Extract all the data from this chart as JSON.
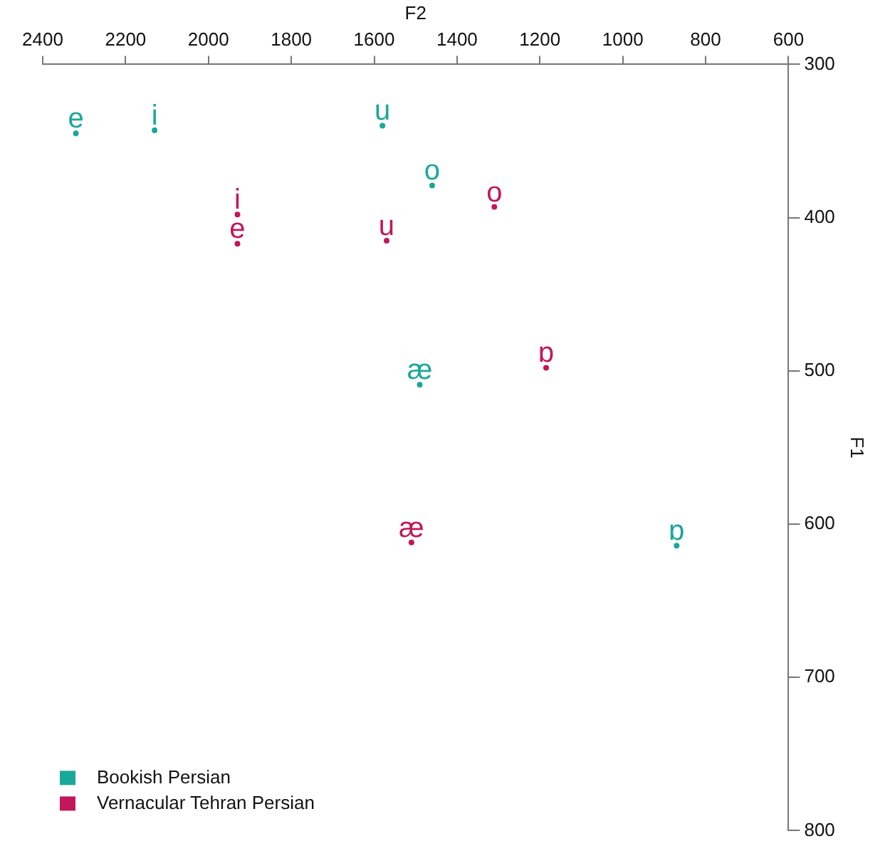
{
  "chart_data": {
    "type": "scatter",
    "xlabel": "F2",
    "ylabel": "F1",
    "xlim": [
      2400,
      600
    ],
    "xticks": [
      2400,
      2200,
      2000,
      1800,
      1600,
      1400,
      1200,
      1000,
      800,
      600
    ],
    "ylim": [
      800,
      300
    ],
    "yticks": [
      300,
      400,
      500,
      600,
      700,
      800
    ],
    "grid": false,
    "legend": "bottom left",
    "series": [
      {
        "name": "Bookish Persian",
        "color": "#1aa89a",
        "x": [
          2320,
          2130,
          1580,
          1460,
          1490,
          870
        ],
        "values": [
          345,
          343,
          340,
          379,
          509,
          614
        ],
        "value_labels": [
          "e",
          "i",
          "u",
          "o",
          "æ",
          "ɒ"
        ]
      },
      {
        "name": "Vernacular Tehran Persian",
        "color": "#c2185b",
        "x": [
          1930,
          1930,
          1570,
          1310,
          1185,
          1510
        ],
        "values": [
          398,
          417,
          415,
          393,
          498,
          612
        ],
        "value_labels": [
          "i",
          "e",
          "u",
          "o",
          "ɒ",
          "æ"
        ]
      }
    ]
  }
}
